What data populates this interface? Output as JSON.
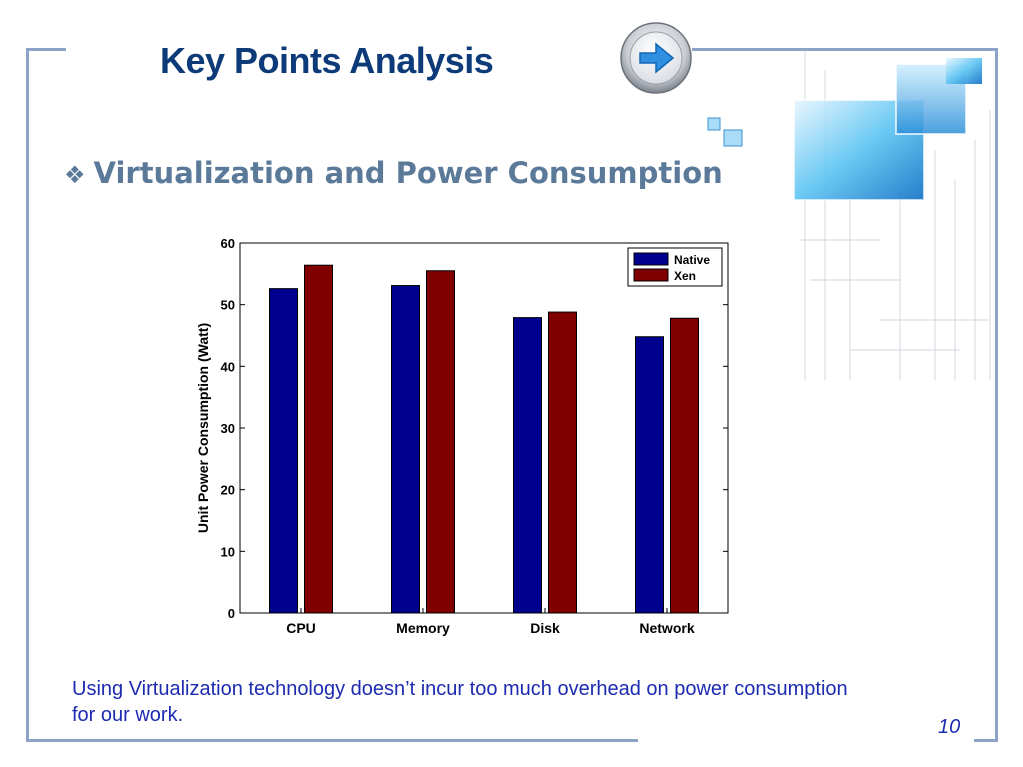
{
  "slide": {
    "title": "Key Points Analysis",
    "subtitle": "Virtualization and Power Consumption",
    "bullet_icon": "diamond-bullet-icon",
    "caption": "Using Virtualization technology doesn’t incur too much overhead on power consumption for our work.",
    "page_number": "10"
  },
  "icons": {
    "nav": "arrow-right-icon",
    "decoration": "glass-cubes-decoration"
  },
  "colors": {
    "title": "#0d3a78",
    "subtitle": "#5b7a9a",
    "caption": "#1c2bb0",
    "frame": "#8aa3c7",
    "native": "#00008f",
    "xen": "#800000"
  },
  "chart_data": {
    "type": "bar",
    "title": "",
    "xlabel": "",
    "ylabel": "Unit Power Consumption (Watt)",
    "categories": [
      "CPU",
      "Memory",
      "Disk",
      "Network"
    ],
    "ylim": [
      0,
      60
    ],
    "yticks": [
      0,
      10,
      20,
      30,
      40,
      50,
      60
    ],
    "grid": false,
    "legend_position": "top-right",
    "series": [
      {
        "name": "Native",
        "color": "#00008f",
        "values": [
          52.6,
          53.1,
          47.9,
          44.8
        ]
      },
      {
        "name": "Xen",
        "color": "#800000",
        "values": [
          56.4,
          55.5,
          48.8,
          47.8
        ]
      }
    ]
  }
}
